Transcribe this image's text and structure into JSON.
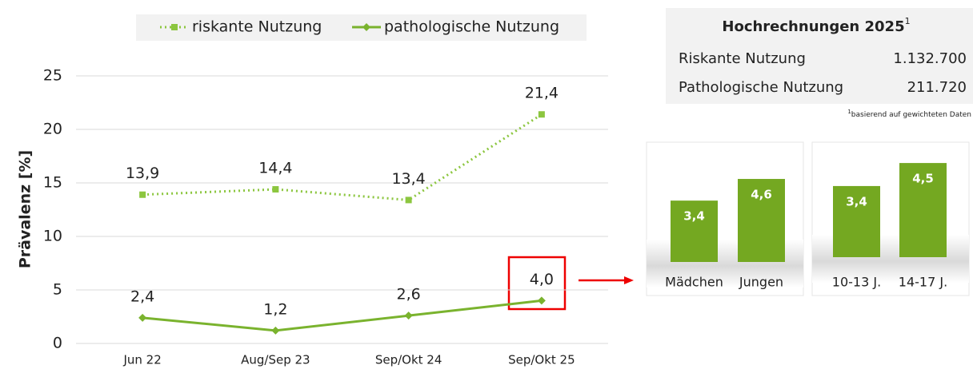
{
  "chart_data": [
    {
      "type": "line",
      "y_label": "Prävalenz [%]",
      "categories": [
        "Jun 22",
        "Aug/Sep 23",
        "Sep/Okt 24",
        "Sep/Okt 25"
      ],
      "ylim": [
        0,
        25
      ],
      "yticks": [
        0,
        5,
        10,
        15,
        20,
        25
      ],
      "grid": true,
      "legend": "top",
      "series": [
        {
          "name": "riskante Nutzung",
          "color": "#8cc63f",
          "line_style": "dotted",
          "marker": "square",
          "values": [
            13.9,
            14.4,
            13.4,
            21.4
          ],
          "value_labels": [
            "13,9",
            "14,4",
            "13,4",
            "21,4"
          ]
        },
        {
          "name": "pathologische Nutzung",
          "color": "#7ab32e",
          "line_style": "solid",
          "marker": "diamond",
          "values": [
            2.4,
            1.2,
            2.6,
            4.0
          ],
          "value_labels": [
            "2,4",
            "1,2",
            "2,6",
            "4,0"
          ]
        }
      ]
    },
    {
      "type": "bar",
      "categories": [
        "Mädchen",
        "Jungen"
      ],
      "values": [
        3.4,
        4.6
      ],
      "value_labels": [
        "3,4",
        "4,6"
      ],
      "color": "#74a821"
    },
    {
      "type": "bar",
      "categories": [
        "10-13 J.",
        "14-17 J."
      ],
      "values": [
        3.4,
        4.5
      ],
      "value_labels": [
        "3,4",
        "4,5"
      ],
      "color": "#74a821"
    }
  ],
  "projection": {
    "title": "Hochrechnungen 2025",
    "title_note": "1",
    "rows": [
      [
        "Riskante Nutzung",
        "1.132.700"
      ],
      [
        "Pathologische Nutzung",
        "211.720"
      ]
    ],
    "footnote_mark": "1",
    "footnote": "basierend auf gewichteten Daten"
  }
}
